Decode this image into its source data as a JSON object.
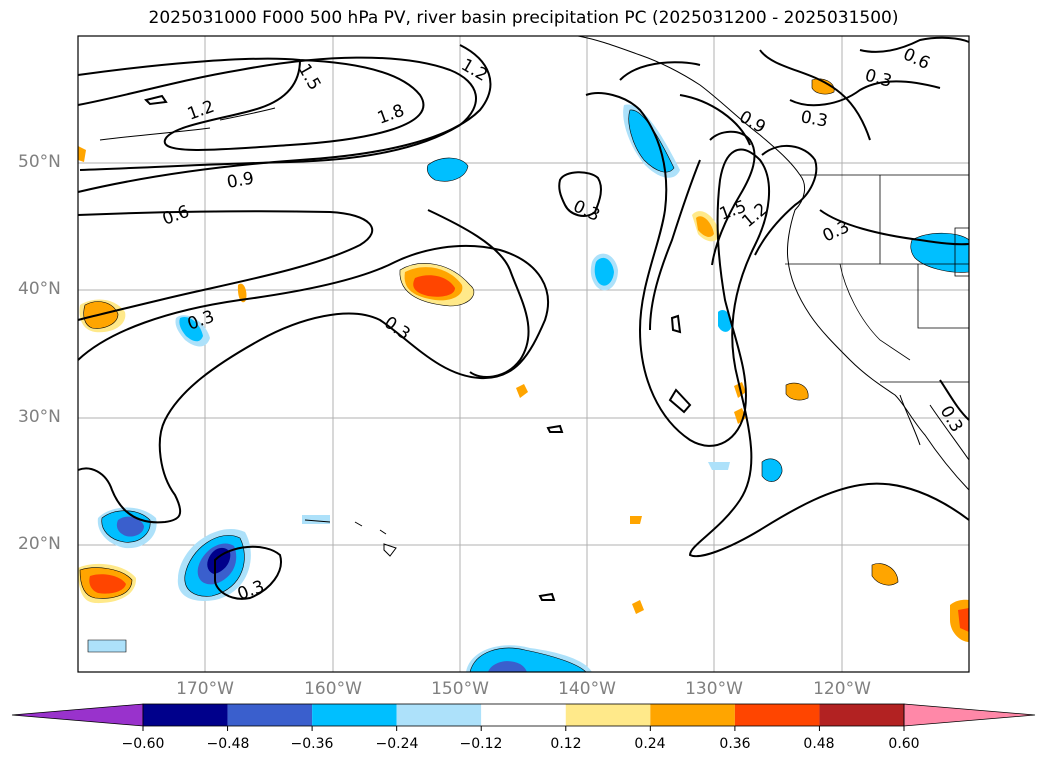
{
  "title": "2025031000 F000 500 hPa PV, river basin precipitation PC (2025031200 - 2025031500)",
  "lat_labels": [
    "50°N",
    "40°N",
    "30°N",
    "20°N"
  ],
  "lon_labels": [
    "170°W",
    "160°W",
    "150°W",
    "140°W",
    "130°W",
    "120°W"
  ],
  "contour_labels": [
    "1.5",
    "1.2",
    "1.2",
    "1.8",
    "0.9",
    "0.6",
    "0.3",
    "0.3",
    "0.3",
    "0.9",
    "1.5",
    "1.2",
    "0.3",
    "0.3",
    "0.6",
    "0.3",
    "0.3",
    "0.3"
  ],
  "colorbar": {
    "ticks": [
      "−0.60",
      "−0.48",
      "−0.36",
      "−0.24",
      "−0.12",
      "0.12",
      "0.24",
      "0.36",
      "0.48",
      "0.60"
    ],
    "colors": [
      "#9932CC",
      "#00008B",
      "#3A5FCD",
      "#00BFFF",
      "#ADE1FA",
      "#FFFFFF",
      "#FFE98A",
      "#FFA500",
      "#FF4500",
      "#B22222",
      "#FF88A8"
    ]
  },
  "colors": {
    "contour": "#000000",
    "grid": "#b0b0b0",
    "coast": "#000000",
    "axis_label": "#808080"
  }
}
